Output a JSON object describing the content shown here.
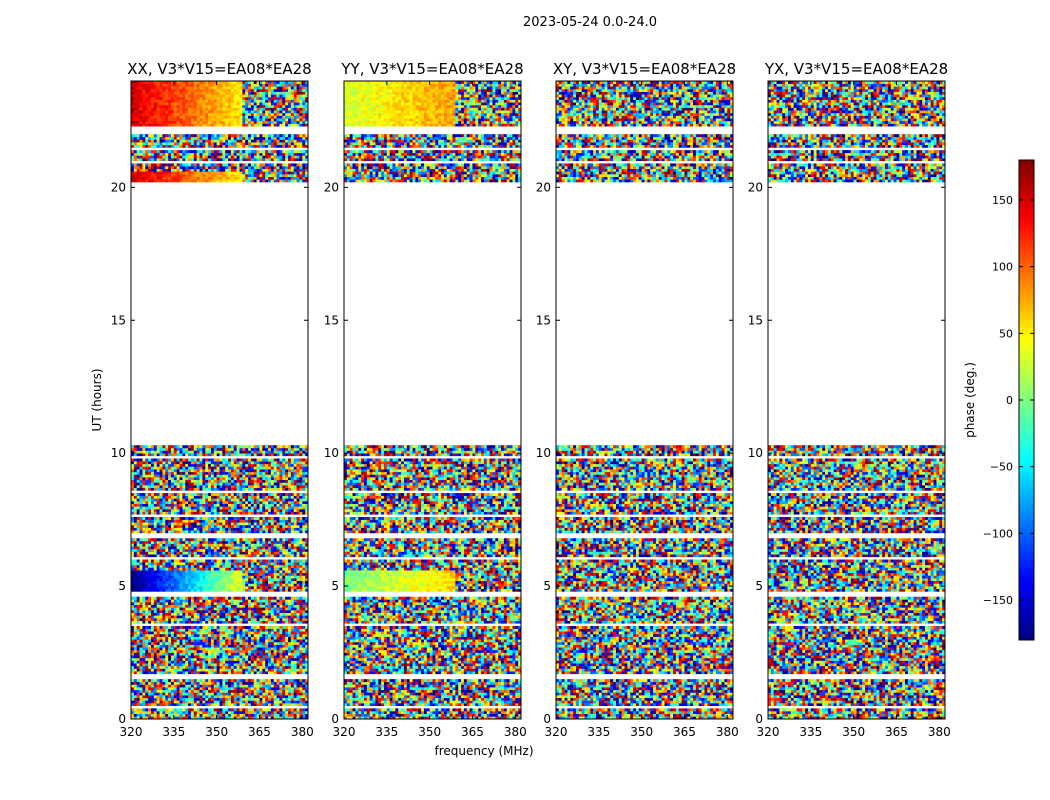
{
  "figure": {
    "title": "2023-05-24 0.0-24.0",
    "xlabel": "frequency (MHz)",
    "ylabel": "UT (hours)"
  },
  "colorbar": {
    "label": "phase (deg.)",
    "range": [
      -180,
      180
    ],
    "ticks": [
      150,
      100,
      50,
      0,
      -50,
      -100,
      -150
    ],
    "tick_labels": [
      "150",
      "100",
      "50",
      "0",
      "−50",
      "−100",
      "−150"
    ],
    "colormap": [
      "#00007f",
      "#0000ff",
      "#007fff",
      "#00ffff",
      "#7fff7f",
      "#ffff00",
      "#ff7f00",
      "#ff0000",
      "#7f0000"
    ]
  },
  "chart_data": [
    {
      "type": "heatmap",
      "title": "XX, V3*V15=EA08*EA28",
      "xlim": [
        320,
        382
      ],
      "ylim": [
        0,
        24
      ],
      "xticks": [
        320,
        335,
        350,
        365,
        380
      ],
      "xtick_labels": [
        "320",
        "335",
        "350",
        "365",
        "380"
      ],
      "yticks": [
        0,
        5,
        10,
        15,
        20
      ],
      "ytick_labels": [
        "0",
        "5",
        "10",
        "15",
        "20"
      ],
      "no_data_ut_hours": [
        [
          10.3,
          20.2
        ]
      ],
      "coherent_phase_regions": [
        {
          "ut": [
            4.8,
            5.6
          ],
          "freq": [
            320,
            359
          ],
          "phase": "-180 to 40 (gradient)"
        },
        {
          "ut": [
            22.2,
            24.0
          ],
          "freq": [
            320,
            359
          ],
          "phase": "150 to 50"
        },
        {
          "ut": [
            20.2,
            20.6
          ],
          "freq": [
            320,
            359
          ],
          "phase": "150 to 50"
        }
      ]
    },
    {
      "type": "heatmap",
      "title": "YY, V3*V15=EA08*EA28",
      "xlim": [
        320,
        382
      ],
      "ylim": [
        0,
        24
      ],
      "xticks": [
        320,
        335,
        350,
        365,
        380
      ],
      "xtick_labels": [
        "320",
        "335",
        "350",
        "365",
        "380"
      ],
      "yticks": [
        0,
        5,
        10,
        15,
        20
      ],
      "ytick_labels": [
        "0",
        "5",
        "10",
        "15",
        "20"
      ],
      "no_data_ut_hours": [
        [
          10.3,
          20.2
        ]
      ],
      "coherent_phase_regions": [
        {
          "ut": [
            4.8,
            5.6
          ],
          "freq": [
            320,
            359
          ],
          "phase": "0 to 60 (gradient)"
        },
        {
          "ut": [
            22.2,
            24.0
          ],
          "freq": [
            320,
            359
          ],
          "phase": "30 to 80"
        }
      ]
    },
    {
      "type": "heatmap",
      "title": "XY, V3*V15=EA08*EA28",
      "xlim": [
        320,
        382
      ],
      "ylim": [
        0,
        24
      ],
      "xticks": [
        320,
        335,
        350,
        365,
        380
      ],
      "xtick_labels": [
        "320",
        "335",
        "350",
        "365",
        "380"
      ],
      "yticks": [
        0,
        5,
        10,
        15,
        20
      ],
      "ytick_labels": [
        "0",
        "5",
        "10",
        "15",
        "20"
      ],
      "no_data_ut_hours": [
        [
          10.3,
          20.2
        ]
      ],
      "coherent_phase_regions": []
    },
    {
      "type": "heatmap",
      "title": "YX, V3*V15=EA08*EA28",
      "xlim": [
        320,
        382
      ],
      "ylim": [
        0,
        24
      ],
      "xticks": [
        320,
        335,
        350,
        365,
        380
      ],
      "xtick_labels": [
        "320",
        "335",
        "350",
        "365",
        "380"
      ],
      "yticks": [
        0,
        5,
        10,
        15,
        20
      ],
      "ytick_labels": [
        "0",
        "5",
        "10",
        "15",
        "20"
      ],
      "no_data_ut_hours": [
        [
          10.3,
          20.2
        ]
      ],
      "coherent_phase_regions": []
    }
  ]
}
